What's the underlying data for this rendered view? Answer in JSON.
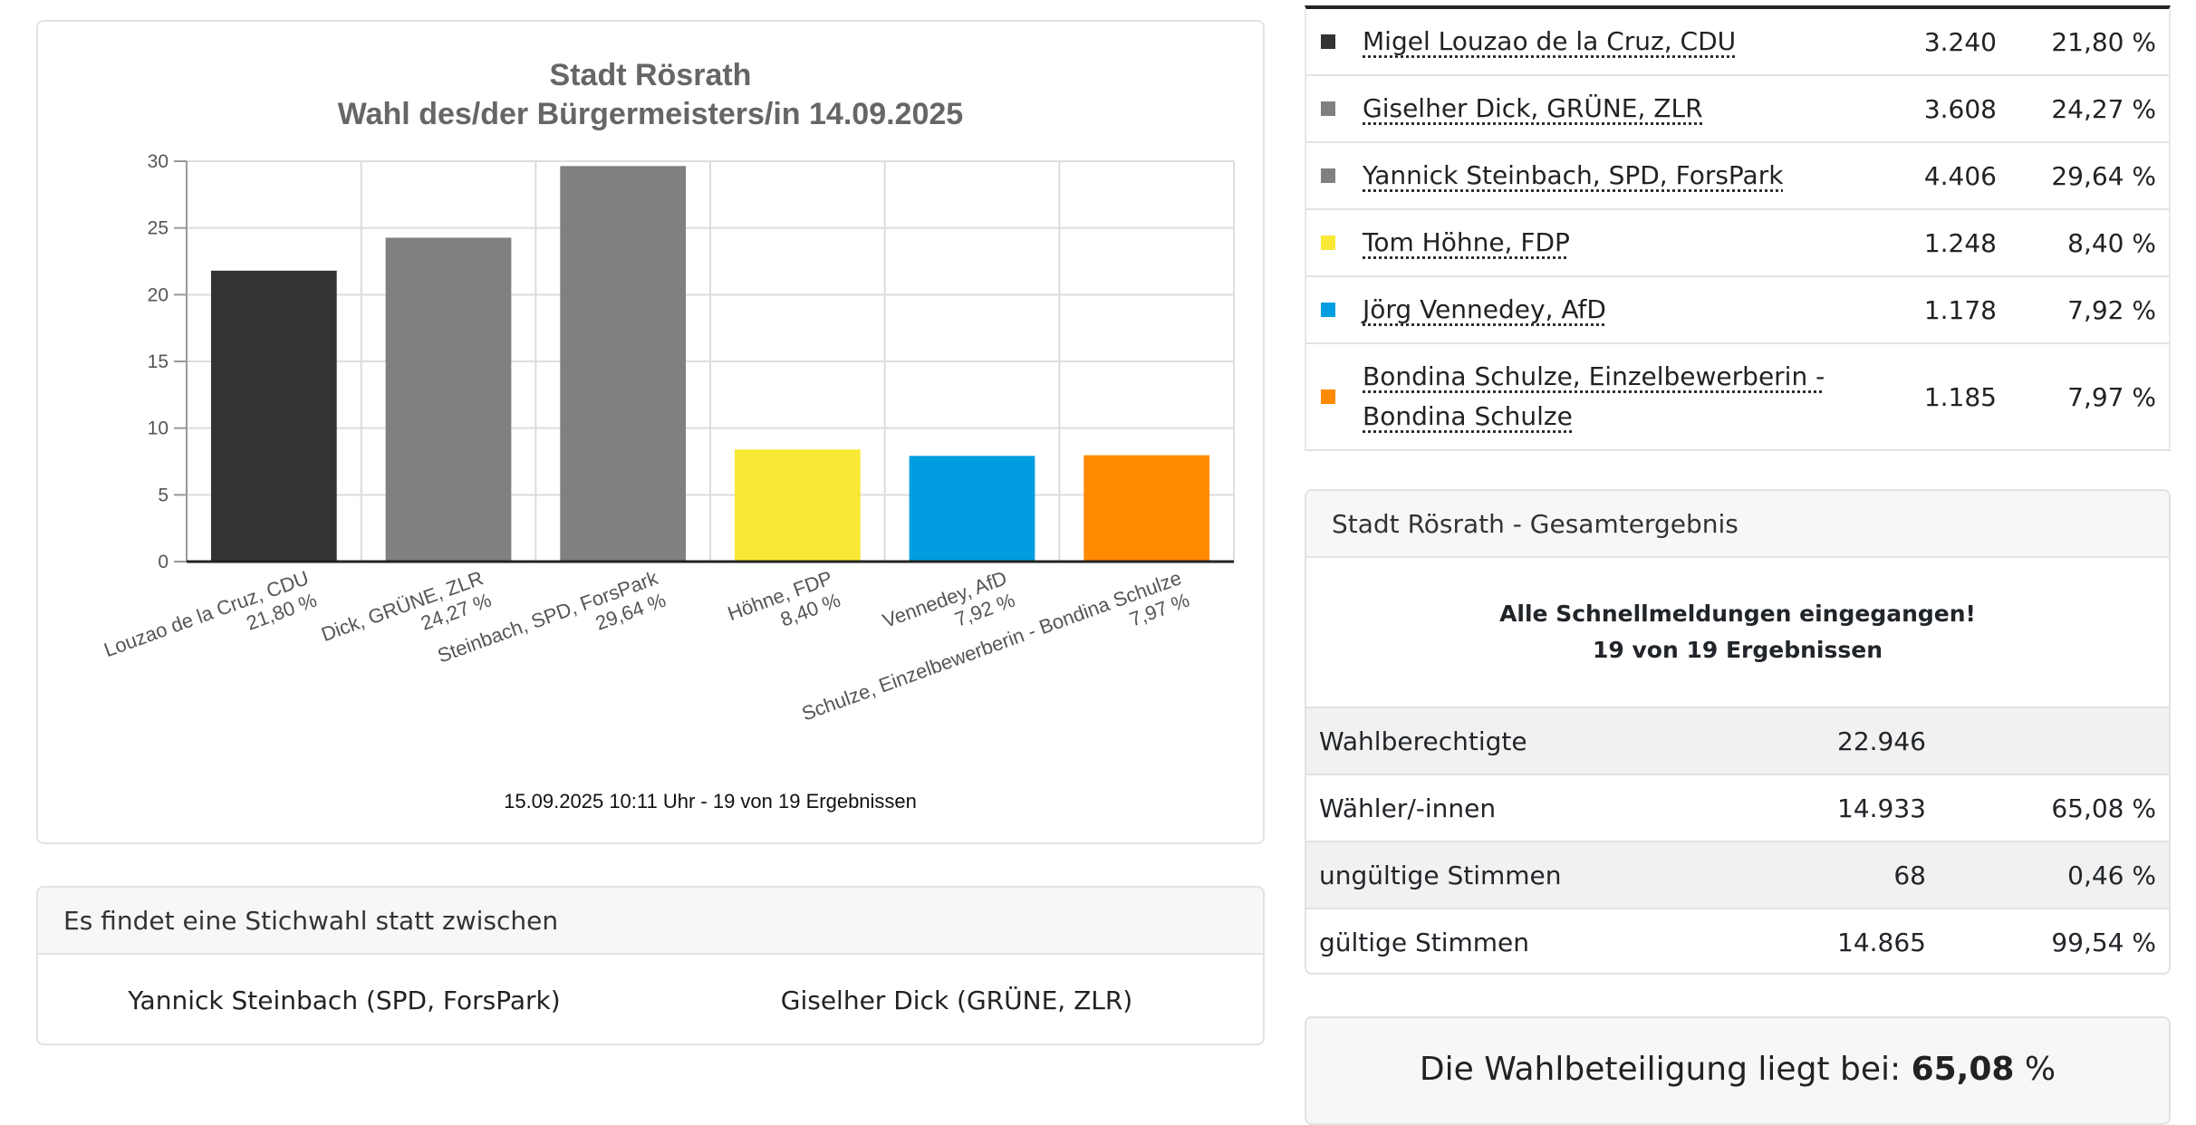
{
  "chart_data": {
    "type": "bar",
    "title": "Stadt Rösrath",
    "subtitle": "Wahl des/der Bürgermeisters/in 14.09.2025",
    "categories": [
      "Louzao de la Cruz, CDU",
      "Dick, GRÜNE, ZLR",
      "Steinbach, SPD, ForsPark",
      "Höhne, FDP",
      "Vennedey, AfD",
      "Schulze, Einzelbewerberin - Bondina Schulze"
    ],
    "value_labels": [
      "21,80 %",
      "24,27 %",
      "29,64 %",
      "8,40 %",
      "7,92 %",
      "7,97 %"
    ],
    "values": [
      21.8,
      24.27,
      29.64,
      8.4,
      7.92,
      7.97
    ],
    "colors": [
      "#333333",
      "#808080",
      "#808080",
      "#f9e835",
      "#009ee0",
      "#ff8a00"
    ],
    "yticks": [
      0,
      5,
      10,
      15,
      20,
      25,
      30
    ],
    "ylim": [
      0,
      30
    ],
    "grid": true,
    "footer": "15.09.2025 10:11 Uhr - 19 von 19 Ergebnissen"
  },
  "candidates": [
    {
      "name": "Migel Louzao de la Cruz, CDU",
      "votes": "3.240",
      "pct": "21,80 %",
      "color": "#333333"
    },
    {
      "name": "Giselher Dick, GRÜNE, ZLR",
      "votes": "3.608",
      "pct": "24,27 %",
      "color": "#808080"
    },
    {
      "name": "Yannick Steinbach, SPD, ForsPark",
      "votes": "4.406",
      "pct": "29,64 %",
      "color": "#808080"
    },
    {
      "name": "Tom Höhne, FDP",
      "votes": "1.248",
      "pct": "8,40 %",
      "color": "#f9e835"
    },
    {
      "name": "Jörg Vennedey, AfD",
      "votes": "1.178",
      "pct": "7,92 %",
      "color": "#009ee0"
    },
    {
      "name_line1": "Bondina Schulze, Einzelbewerberin -",
      "name_line2": "Bondina Schulze",
      "votes": "1.185",
      "pct": "7,97 %",
      "color": "#ff8a00"
    }
  ],
  "runoff": {
    "header": "Es findet eine Stichwahl statt zwischen",
    "candidate_a": "Yannick Steinbach (SPD, ForsPark)",
    "candidate_b": "Giselher Dick (GRÜNE, ZLR)"
  },
  "total": {
    "header": "Stadt Rösrath - Gesamtergebnis",
    "status_line1": "Alle Schnellmeldungen eingegangen!",
    "status_line2": "19 von 19 Ergebnissen",
    "rows": [
      {
        "label": "Wahlberechtigte",
        "value": "22.946",
        "pct": ""
      },
      {
        "label": "Wähler/-innen",
        "value": "14.933",
        "pct": "65,08 %"
      },
      {
        "label": "ungültige Stimmen",
        "value": "68",
        "pct": "0,46 %"
      },
      {
        "label": "gültige Stimmen",
        "value": "14.865",
        "pct": "99,54 %"
      }
    ]
  },
  "turnout": {
    "prefix": "Die Wahlbeteiligung liegt bei:",
    "value": "65,08",
    "suffix": "%"
  }
}
